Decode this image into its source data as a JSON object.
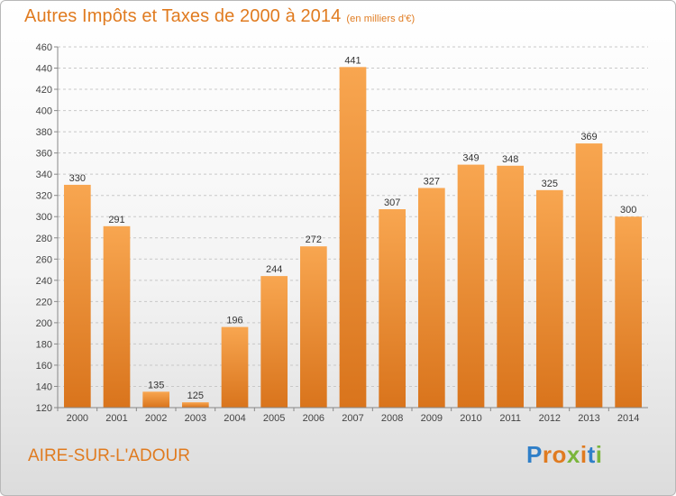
{
  "header": {
    "title": "Autres Impôts et Taxes de 2000 à 2014",
    "unit": "(en milliers d'€)"
  },
  "footer": {
    "city": "AIRE-SUR-L'ADOUR",
    "logo_letters": [
      {
        "ch": "P",
        "color": "#2f7fc8"
      },
      {
        "ch": "r",
        "color": "#e07b20"
      },
      {
        "ch": "o",
        "color": "#e07b20"
      },
      {
        "ch": "x",
        "color": "#7ab53b"
      },
      {
        "ch": "i",
        "color": "#e07b20"
      },
      {
        "ch": "t",
        "color": "#2f7fc8"
      },
      {
        "ch": "i",
        "color": "#7ab53b"
      }
    ]
  },
  "chart_data": {
    "type": "bar",
    "title": "Autres Impôts et Taxes de 2000 à 2014",
    "subtitle": "(en milliers d'€)",
    "categories": [
      "2000",
      "2001",
      "2002",
      "2003",
      "2004",
      "2005",
      "2006",
      "2007",
      "2008",
      "2009",
      "2010",
      "2011",
      "2012",
      "2013",
      "2014"
    ],
    "values": [
      330,
      291,
      135,
      125,
      196,
      244,
      272,
      441,
      307,
      327,
      349,
      348,
      325,
      369,
      300
    ],
    "ylim": [
      120,
      460
    ],
    "yticks": [
      120,
      140,
      160,
      180,
      200,
      220,
      240,
      260,
      280,
      300,
      320,
      340,
      360,
      380,
      400,
      420,
      440,
      460
    ],
    "grid": "dashed-horizontal",
    "bar_color_light": "#f8a650",
    "bar_color_dark": "#d9741c"
  }
}
